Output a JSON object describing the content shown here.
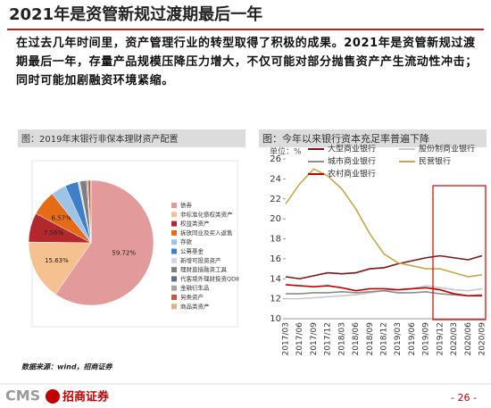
{
  "header": {
    "title": "2021年是资管新规过渡期最后一年"
  },
  "body": {
    "text": "在过去几年时间里，资产管理行业的转型取得了积极的成果。2021年是资管新规过渡期最后一年，存量产品规模压降压力增大，不仅可能对部分抛售资产产生流动性冲击；同时可能加剧融资环境紧缩。"
  },
  "chart_data": [
    {
      "type": "pie",
      "title": "图：2019年末银行非保本理财资产配置",
      "categories": [
        "债券",
        "非标准化债权类资产",
        "权益类资产",
        "拆放同业及买入返售",
        "存款",
        "公募基金",
        "新增可投资资产",
        "理财直接融资工具",
        "代客境外理财投资QDII",
        "金融衍生品",
        "另类资产",
        "商品类资产"
      ],
      "values": [
        59.72,
        15.63,
        7.56,
        6.57,
        3.9,
        3.4,
        0.5,
        1.7,
        0.3,
        0.1,
        0.7,
        0.1
      ],
      "value_labels": [
        "59.72%",
        "15.63%",
        "7.56%",
        "6.57%",
        null,
        null,
        null,
        null,
        null,
        null,
        null,
        null
      ],
      "colors": [
        "#e39a9a",
        "#f5c190",
        "#b3282d",
        "#e56b16",
        "#9dc3e6",
        "#3f7fc9",
        "#c9d7e8",
        "#7f7f7f",
        "#5b6f86",
        "#a6a6a6",
        "#c85a3a",
        "#d9b38c"
      ]
    },
    {
      "type": "line",
      "title": "图：今年以来银行资本充足率普遍下降",
      "unit": "单位：%",
      "categories": [
        "2017/03",
        "2017/06",
        "2017/09",
        "2017/12",
        "2018/03",
        "2018/06",
        "2018/09",
        "2018/12",
        "2019/03",
        "2019/06",
        "2019/09",
        "2019/12",
        "2020/03",
        "2020/06",
        "2020/09"
      ],
      "series": [
        {
          "name": "大型商业银行",
          "color": "#7b1416",
          "values": [
            14.2,
            14.0,
            14.3,
            14.6,
            14.5,
            14.6,
            15.0,
            15.1,
            15.5,
            15.8,
            16.1,
            16.3,
            16.1,
            15.9,
            16.3
          ]
        },
        {
          "name": "股份制商业银行",
          "color": "#c8c8c8",
          "values": [
            12.0,
            12.0,
            12.1,
            12.2,
            12.3,
            12.4,
            12.6,
            12.8,
            12.9,
            13.0,
            13.3,
            13.1,
            12.9,
            12.8,
            13.0
          ]
        },
        {
          "name": "城市商业银行",
          "color": "#8c8c8c",
          "values": [
            12.5,
            12.5,
            12.6,
            12.6,
            12.7,
            12.6,
            12.7,
            12.8,
            12.6,
            12.6,
            12.7,
            12.5,
            12.4,
            12.3,
            12.4
          ]
        },
        {
          "name": "民营银行",
          "color": "#c9a646",
          "values": [
            21.5,
            23.5,
            25.0,
            24.3,
            23.0,
            21.0,
            18.5,
            16.5,
            15.6,
            15.3,
            15.0,
            15.0,
            14.6,
            14.2,
            14.4
          ]
        },
        {
          "name": "农村商业银行",
          "color": "#c00000",
          "values": [
            13.4,
            13.3,
            13.2,
            13.3,
            13.1,
            12.8,
            13.0,
            13.0,
            12.9,
            13.0,
            13.1,
            12.9,
            12.5,
            12.3,
            12.3
          ]
        }
      ],
      "ylim": [
        10,
        26
      ],
      "yticks": [
        10,
        12,
        14,
        16,
        18,
        20,
        22,
        24,
        26
      ]
    }
  ],
  "footer": {
    "source": "数据来源：wind，招商证券",
    "logo": "CMS",
    "brand": "招商证券",
    "page": "- 26 -"
  }
}
